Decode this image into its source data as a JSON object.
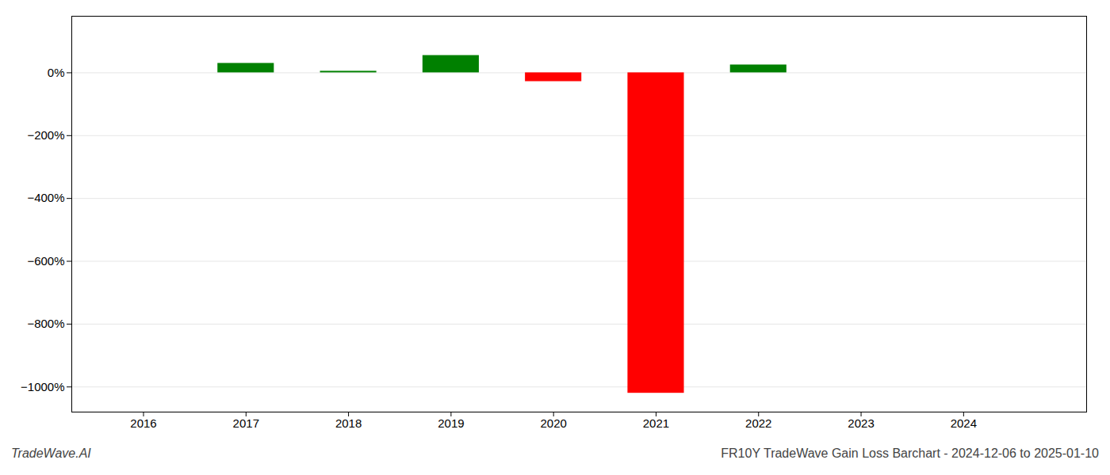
{
  "chart_data": {
    "type": "bar",
    "title": "FR10Y TradeWave Gain Loss Barchart - 2024-12-06 to 2025-01-10",
    "annotations": [
      "TradeWave.AI"
    ],
    "x": [
      2017,
      2018,
      2019,
      2020,
      2021,
      2022
    ],
    "values": [
      30,
      5,
      55,
      -28,
      -1020,
      25
    ],
    "colors": [
      "#008000",
      "#008000",
      "#008000",
      "#ff0000",
      "#ff0000",
      "#008000"
    ],
    "xlim": [
      2015.3,
      2025.2
    ],
    "xticks": [
      2016,
      2017,
      2018,
      2019,
      2020,
      2021,
      2022,
      2023,
      2024
    ],
    "ylim": [
      -1080,
      180
    ],
    "yticks": [
      {
        "value": 0,
        "label": "0%"
      },
      {
        "value": -200,
        "label": "−200%"
      },
      {
        "value": -400,
        "label": "−400%"
      },
      {
        "value": -600,
        "label": "−600%"
      },
      {
        "value": -800,
        "label": "−800%"
      },
      {
        "value": -1000,
        "label": "−1000%"
      }
    ],
    "grid": true
  }
}
